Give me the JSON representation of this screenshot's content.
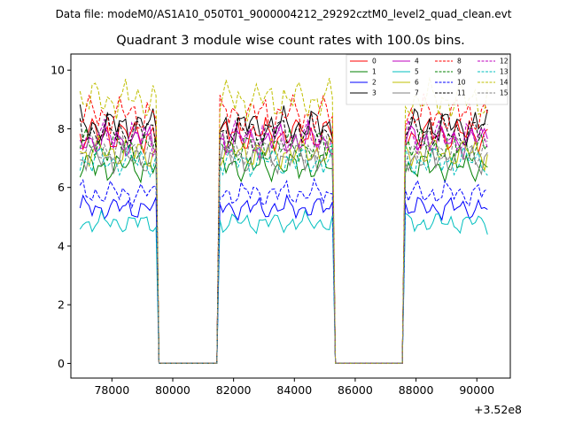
{
  "chart_data": {
    "type": "line",
    "suptitle": "Data file: modeM0/AS1A10_050T01_9000004212_29292cztM0_level2_quad_clean.evt",
    "title": "Quadrant 3 module wise count rates with 100.0s bins.",
    "xlabel": "",
    "ylabel": "",
    "x_offset_label": "+3.52e8",
    "xlim": [
      76650,
      91100
    ],
    "ylim": [
      -0.5,
      10.55
    ],
    "xticks": [
      78000,
      80000,
      82000,
      84000,
      86000,
      88000,
      90000
    ],
    "xtick_labels": [
      "78000",
      "80000",
      "82000",
      "84000",
      "86000",
      "88000",
      "90000"
    ],
    "yticks": [
      0,
      2,
      4,
      6,
      8,
      10
    ],
    "ytick_labels": [
      "0",
      "2",
      "4",
      "6",
      "8",
      "10"
    ],
    "legend_position": "upper-right",
    "legend_columns": 4,
    "segments": [
      [
        76950,
        79450
      ],
      [
        81550,
        85250
      ],
      [
        87650,
        90350
      ]
    ],
    "gap_value": 0,
    "series": [
      {
        "name": "0",
        "color": "#ff0000",
        "dash": "solid",
        "level": 7.8
      },
      {
        "name": "1",
        "color": "#008000",
        "dash": "solid",
        "level": 6.7
      },
      {
        "name": "2",
        "color": "#0000ff",
        "dash": "solid",
        "level": 5.3
      },
      {
        "name": "3",
        "color": "#000000",
        "dash": "solid",
        "level": 8.1
      },
      {
        "name": "4",
        "color": "#bf00bf",
        "dash": "solid",
        "level": 7.6
      },
      {
        "name": "5",
        "color": "#00bfbf",
        "dash": "solid",
        "level": 4.8
      },
      {
        "name": "6",
        "color": "#bfbf00",
        "dash": "solid",
        "level": 7.2
      },
      {
        "name": "7",
        "color": "#808080",
        "dash": "solid",
        "level": 7.0
      },
      {
        "name": "8",
        "color": "#ff0000",
        "dash": "dashed",
        "level": 8.5
      },
      {
        "name": "9",
        "color": "#008000",
        "dash": "dashed",
        "level": 7.4
      },
      {
        "name": "10",
        "color": "#0000ff",
        "dash": "dashed",
        "level": 5.8
      },
      {
        "name": "11",
        "color": "#000000",
        "dash": "dashed",
        "level": 7.9
      },
      {
        "name": "12",
        "color": "#bf00bf",
        "dash": "dashed",
        "level": 7.7
      },
      {
        "name": "13",
        "color": "#00bfbf",
        "dash": "dashed",
        "level": 6.9
      },
      {
        "name": "14",
        "color": "#bfbf00",
        "dash": "dashed",
        "level": 9.0
      },
      {
        "name": "15",
        "color": "#808080",
        "dash": "dashed",
        "level": 7.3
      }
    ]
  }
}
